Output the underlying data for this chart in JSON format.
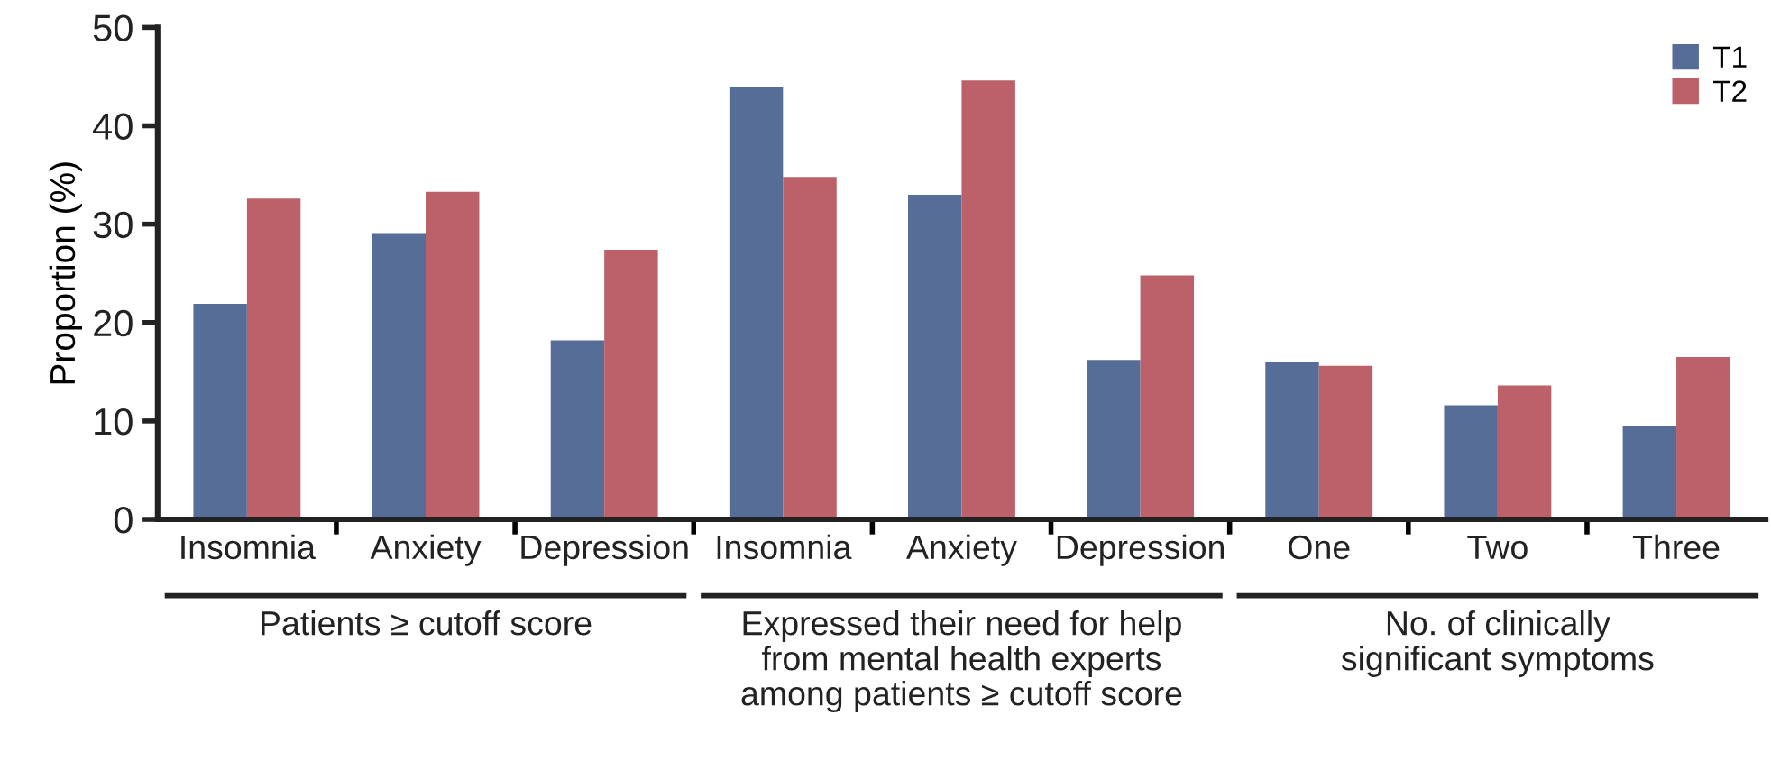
{
  "chart_data": {
    "type": "bar",
    "ylabel": "Proportion (%)",
    "categories": [
      "Insomnia",
      "Anxiety",
      "Depression",
      "Insomnia",
      "Anxiety",
      "Depression",
      "One",
      "Two",
      "Three"
    ],
    "series": [
      {
        "name": "T1",
        "color": "#566d98",
        "values": [
          21.9,
          29.1,
          18.2,
          43.9,
          33.0,
          16.2,
          16.0,
          11.6,
          9.5
        ]
      },
      {
        "name": "T2",
        "color": "#bc6069",
        "values": [
          32.6,
          33.3,
          27.4,
          34.8,
          44.6,
          24.8,
          15.6,
          13.6,
          16.5
        ]
      }
    ],
    "ylim": [
      0,
      50
    ],
    "yticks": [
      0,
      10,
      20,
      30,
      40,
      50
    ],
    "grid": false,
    "legend": "top right",
    "annotations": [
      "Patients ≥ cutoff score",
      "Expressed their need for help\nfrom mental health experts\namong patients ≥ cutoff score",
      "No. of clinically\nsignificant symptoms"
    ]
  }
}
